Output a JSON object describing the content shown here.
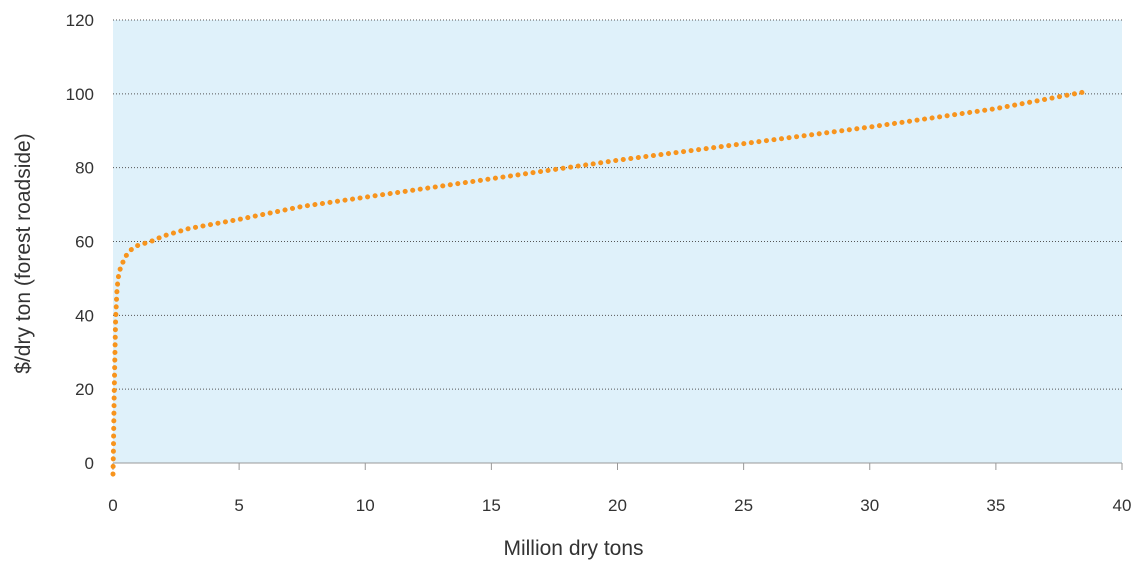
{
  "chart_data": {
    "type": "line",
    "title": "",
    "xlabel": "Million dry tons",
    "ylabel": "$/dry ton (forest roadside)",
    "xlim": [
      0,
      40
    ],
    "ylim": [
      0,
      120
    ],
    "x_ticks": [
      0,
      5,
      10,
      15,
      20,
      25,
      30,
      35,
      40
    ],
    "y_ticks": [
      0,
      20,
      40,
      60,
      80,
      100,
      120
    ],
    "grid": "horizontal dotted",
    "legend": "none",
    "series": [
      {
        "color": "#F7941D",
        "style": "dotted",
        "points": [
          [
            0.0,
            -3
          ],
          [
            0.02,
            5
          ],
          [
            0.05,
            20
          ],
          [
            0.1,
            38
          ],
          [
            0.15,
            46
          ],
          [
            0.2,
            50
          ],
          [
            0.3,
            53
          ],
          [
            0.5,
            56
          ],
          [
            0.75,
            58
          ],
          [
            1.0,
            59
          ],
          [
            1.5,
            60
          ],
          [
            2.0,
            61.5
          ],
          [
            3.0,
            63.5
          ],
          [
            5.0,
            66
          ],
          [
            7.5,
            69.5
          ],
          [
            10.0,
            72
          ],
          [
            15.0,
            77
          ],
          [
            20.0,
            82
          ],
          [
            25.0,
            86.5
          ],
          [
            30.0,
            91
          ],
          [
            35.0,
            96
          ],
          [
            38.5,
            100.5
          ]
        ]
      }
    ]
  },
  "colors": {
    "plot_background": "#DFF1FA",
    "grid": "#555555",
    "series": "#F7941D",
    "axis": "#999999"
  }
}
